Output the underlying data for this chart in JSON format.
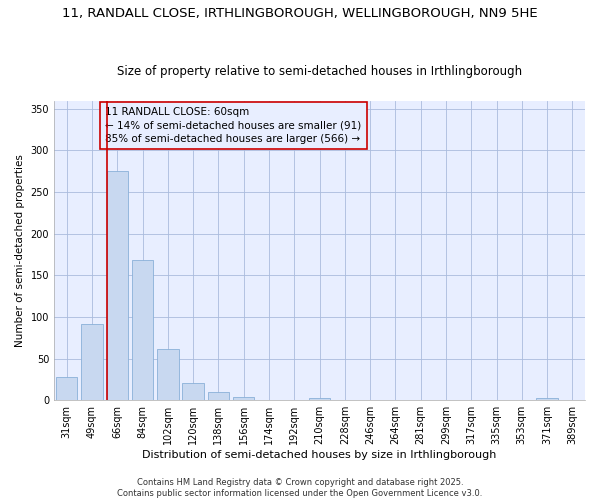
{
  "title": "11, RANDALL CLOSE, IRTHLINGBOROUGH, WELLINGBOROUGH, NN9 5HE",
  "subtitle": "Size of property relative to semi-detached houses in Irthlingborough",
  "xlabel": "Distribution of semi-detached houses by size in Irthlingborough",
  "ylabel": "Number of semi-detached properties",
  "categories": [
    "31sqm",
    "49sqm",
    "66sqm",
    "84sqm",
    "102sqm",
    "120sqm",
    "138sqm",
    "156sqm",
    "174sqm",
    "192sqm",
    "210sqm",
    "228sqm",
    "246sqm",
    "264sqm",
    "281sqm",
    "299sqm",
    "317sqm",
    "335sqm",
    "353sqm",
    "371sqm",
    "389sqm"
  ],
  "values": [
    28,
    91,
    275,
    168,
    62,
    21,
    10,
    4,
    0,
    0,
    3,
    0,
    0,
    0,
    0,
    0,
    0,
    0,
    0,
    3,
    0
  ],
  "bar_color": "#c8d8f0",
  "bar_edgecolor": "#8ab0d8",
  "property_index": 2,
  "annotation_line1": "11 RANDALL CLOSE: 60sqm",
  "annotation_line2": "← 14% of semi-detached houses are smaller (91)",
  "annotation_line3": "85% of semi-detached houses are larger (566) →",
  "vline_color": "#cc0000",
  "annotation_box_edgecolor": "#cc0000",
  "footnote": "Contains HM Land Registry data © Crown copyright and database right 2025.\nContains public sector information licensed under the Open Government Licence v3.0.",
  "ylim": [
    0,
    360
  ],
  "yticks": [
    0,
    50,
    100,
    150,
    200,
    250,
    300,
    350
  ],
  "background_color": "#ffffff",
  "plot_bg_color": "#e8eeff",
  "grid_color": "#aabbdd",
  "title_fontsize": 9.5,
  "subtitle_fontsize": 8.5,
  "xlabel_fontsize": 8,
  "ylabel_fontsize": 7.5,
  "tick_fontsize": 7,
  "annot_fontsize": 7.5,
  "footnote_fontsize": 6
}
